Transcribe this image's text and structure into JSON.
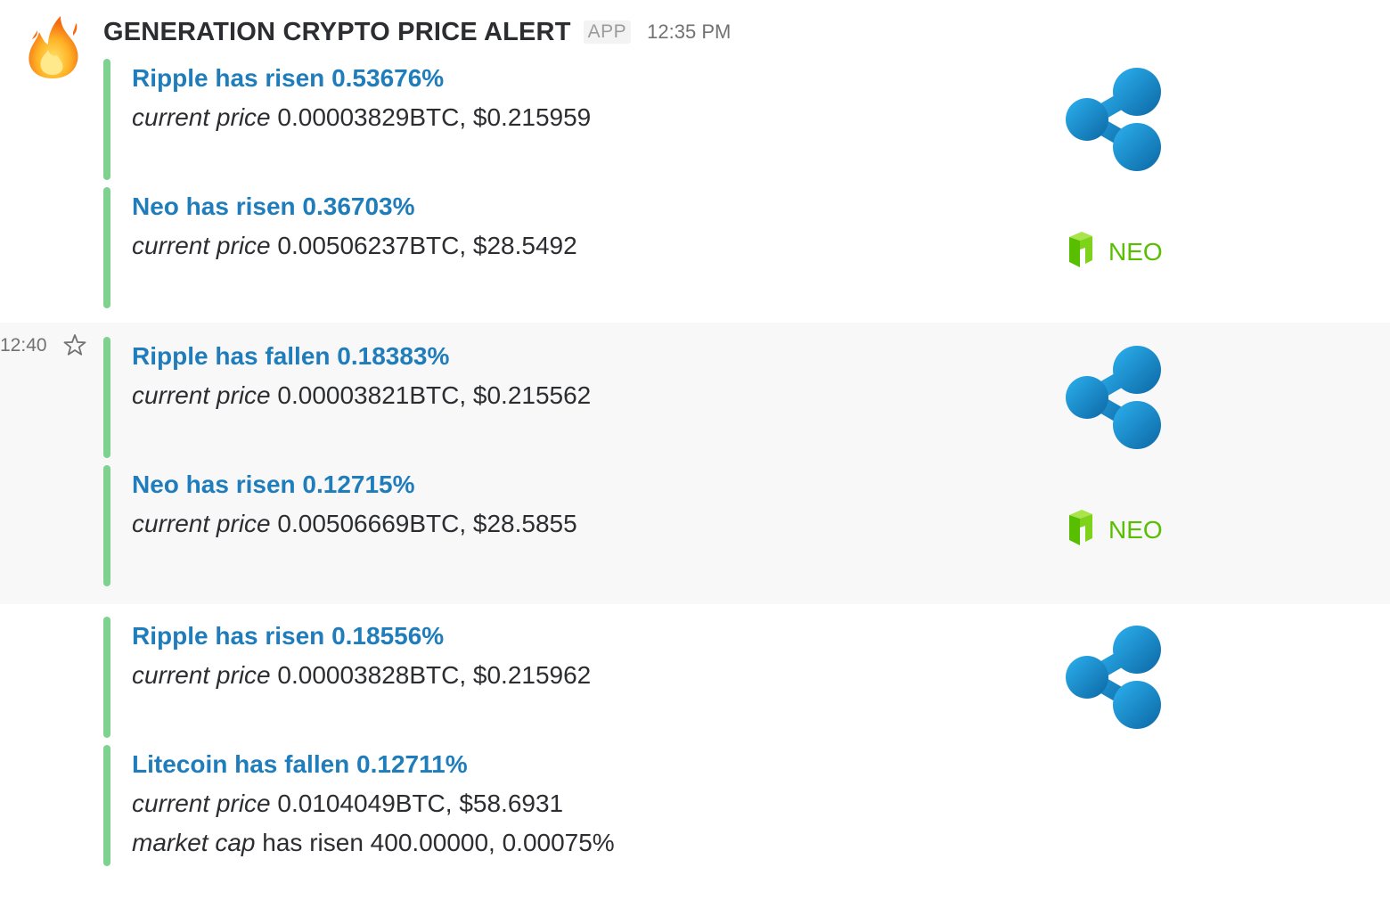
{
  "header": {
    "sender": "GENERATION CRYPTO PRICE ALERT",
    "badge": "APP",
    "time": "12:35 PM",
    "avatar_icon": "fire-emoji-icon"
  },
  "side": {
    "time": "12:40"
  },
  "colors": {
    "attachment_bar": "#7fd18f",
    "title_link": "#1f7dbc",
    "ripple": "#1e8fd6",
    "neo": "#58bf00"
  },
  "alerts": [
    {
      "title": "Ripple has risen 0.53676%",
      "lines": [
        {
          "label": "current price",
          "text": " 0.00003829BTC, $0.215959"
        }
      ],
      "logo": "ripple-logo"
    },
    {
      "title": "Neo has risen 0.36703%",
      "lines": [
        {
          "label": "current price",
          "text": " 0.00506237BTC, $28.5492"
        }
      ],
      "logo": "neo-logo",
      "logo_text": "NEO"
    },
    {
      "title": "Ripple has fallen 0.18383%",
      "lines": [
        {
          "label": "current price",
          "text": " 0.00003821BTC, $0.215562"
        }
      ],
      "logo": "ripple-logo"
    },
    {
      "title": "Neo has risen 0.12715%",
      "lines": [
        {
          "label": "current price",
          "text": " 0.00506669BTC, $28.5855"
        }
      ],
      "logo": "neo-logo",
      "logo_text": "NEO"
    },
    {
      "title": "Ripple has risen 0.18556%",
      "lines": [
        {
          "label": "current price",
          "text": " 0.00003828BTC, $0.215962"
        }
      ],
      "logo": "ripple-logo"
    },
    {
      "title": "Litecoin has fallen 0.12711%",
      "lines": [
        {
          "label": "current price",
          "text": " 0.0104049BTC, $58.6931"
        },
        {
          "label": "market cap",
          "text": " has risen 400.00000, 0.00075%"
        }
      ]
    }
  ]
}
